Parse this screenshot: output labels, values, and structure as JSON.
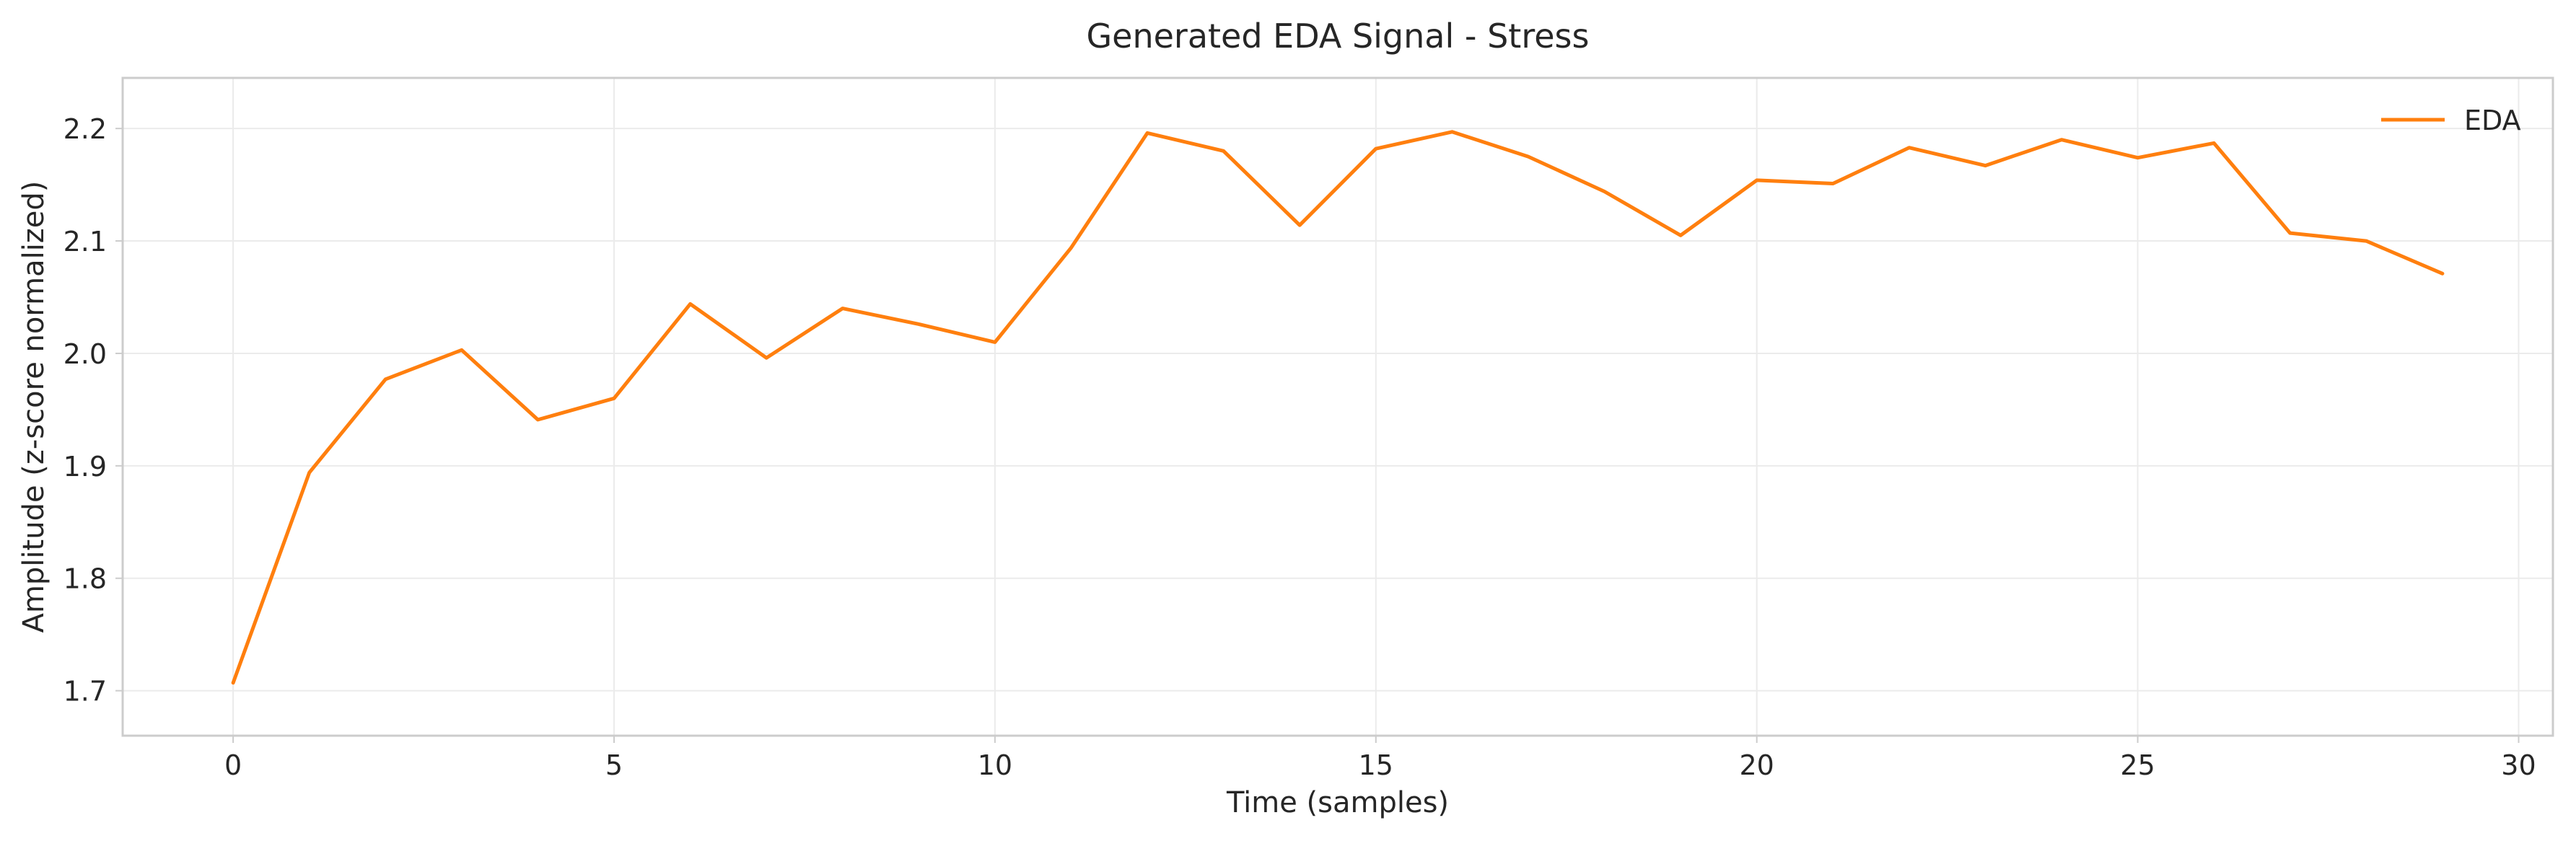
{
  "chart_data": {
    "type": "line",
    "title": "Generated EDA Signal - Stress",
    "xlabel": "Time (samples)",
    "ylabel": "Amplitude (z-score normalized)",
    "xlim": [
      -1.45,
      30.45
    ],
    "ylim": [
      1.66,
      2.245
    ],
    "x_ticks": [
      0,
      5,
      10,
      15,
      20,
      25,
      30
    ],
    "y_ticks": [
      1.7,
      1.8,
      1.9,
      2.0,
      2.1,
      2.2
    ],
    "x_tick_labels": [
      "0",
      "5",
      "10",
      "15",
      "20",
      "25",
      "30"
    ],
    "y_tick_labels": [
      "1.7",
      "1.8",
      "1.9",
      "2.0",
      "2.1",
      "2.2"
    ],
    "grid": true,
    "legend_position": "top-right",
    "series": [
      {
        "name": "EDA",
        "color": "#ff7f0e",
        "x": [
          0,
          1,
          2,
          3,
          4,
          5,
          6,
          7,
          8,
          9,
          10,
          11,
          12,
          13,
          14,
          15,
          16,
          17,
          18,
          19,
          20,
          21,
          22,
          23,
          24,
          25,
          26,
          27,
          28,
          29
        ],
        "y": [
          1.707,
          1.894,
          1.977,
          2.003,
          1.941,
          1.96,
          2.044,
          1.996,
          2.04,
          2.026,
          2.01,
          2.094,
          2.196,
          2.18,
          2.114,
          2.182,
          2.197,
          2.175,
          2.144,
          2.105,
          2.154,
          2.151,
          2.183,
          2.167,
          2.19,
          2.174,
          2.187,
          2.107,
          2.1,
          2.071
        ]
      }
    ]
  }
}
